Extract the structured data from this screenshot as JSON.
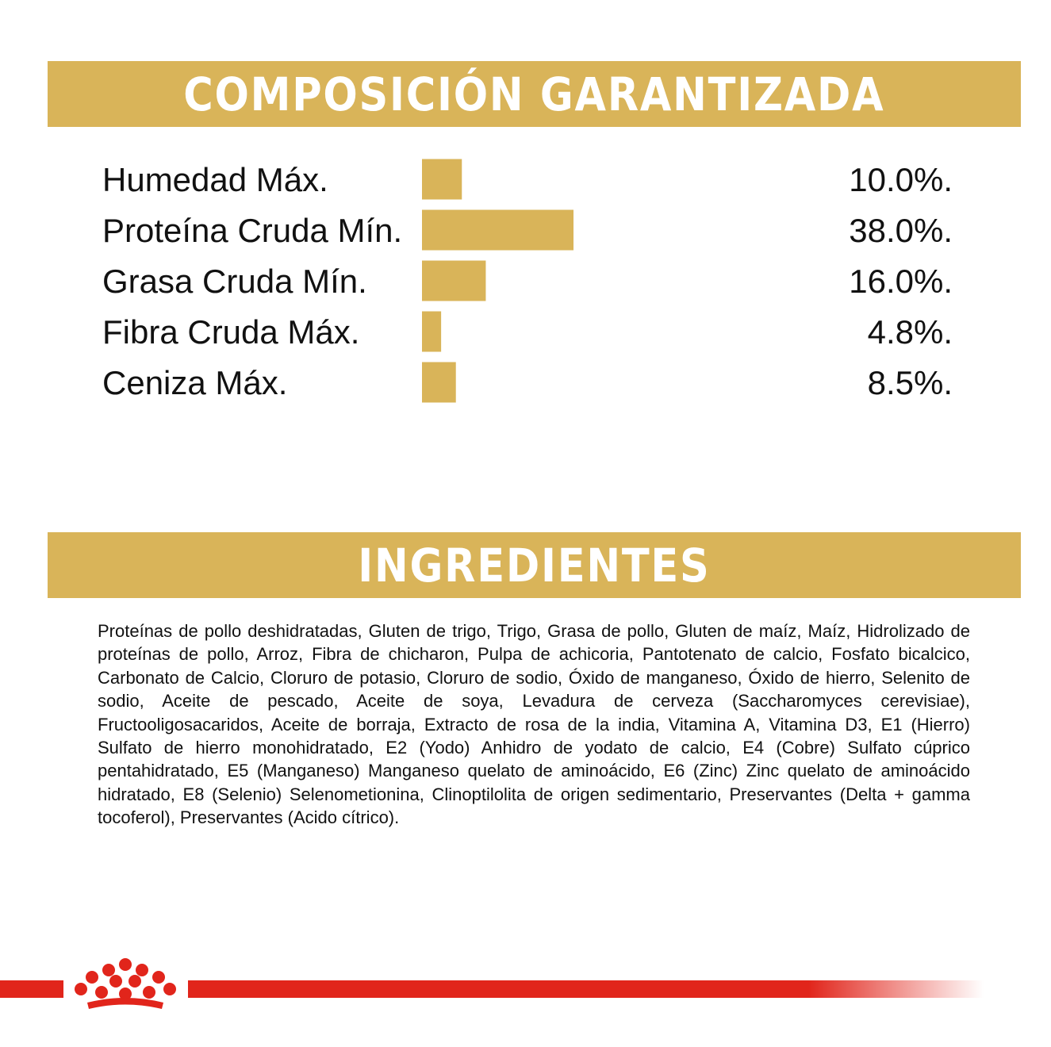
{
  "colors": {
    "gold": "#d9b459",
    "red": "#e1251b",
    "text": "#111111"
  },
  "composition": {
    "title": "COMPOSICIÓN GARANTIZADA"
  },
  "ingredients": {
    "title": "INGREDIENTES",
    "text": "Proteínas de pollo deshidratadas, Gluten de trigo, Trigo, Grasa de pollo, Gluten de maíz, Maíz, Hi­drolizado de proteínas de pollo, Arroz, Fibra de chicharon, Pulpa de achicoria, Pantotenato de calcio, Fosfato bicalcico, Carbonato de Calcio, Cloruro de potasio, Cloruro de sodio, Óxido de manganeso, Óxido de hierro, Selenito de sodio, Aceite de pescado, Aceite de soya, Levadura de cerveza (Saccharo­myces cerevisiae), Fructooligosacaridos, Aceite de borraja, Extracto de rosa de la india, Vitamina A, Vi­tamina D3, E1 (Hierro) Sulfato de hierro monohidratado, E2 (Yodo) Anhidro de yodato de calcio, E4 (Cobre) Sulfato cúprico pentahidratado, E5 (Manganeso) Manganeso quelato de aminoácido, E6 (Zinc) Zinc quelato de aminoácido hidratado, E8 (Selenio) Selenometionina, Clinoptilolita de origen sedimen­tario, Preservantes (Delta + gamma tocoferol), Preservantes (Acido cítrico)."
  },
  "chart_data": {
    "type": "bar",
    "orientation": "horizontal",
    "categories": [
      "Humedad Máx.",
      "Proteína Cruda Mín.",
      "Grasa Cruda Mín.",
      "Fibra Cruda Máx.",
      "Ceniza Máx."
    ],
    "values": [
      10.0,
      38.0,
      16.0,
      4.8,
      8.5
    ],
    "value_labels": [
      "10.0%.",
      "38.0%.",
      "16.0%.",
      "4.8%.",
      "8.5%."
    ],
    "bar_color": "#d9b459",
    "legend": "none",
    "grid": false
  },
  "brand": {
    "logo_icon": "royal-canin-crown-icon"
  }
}
